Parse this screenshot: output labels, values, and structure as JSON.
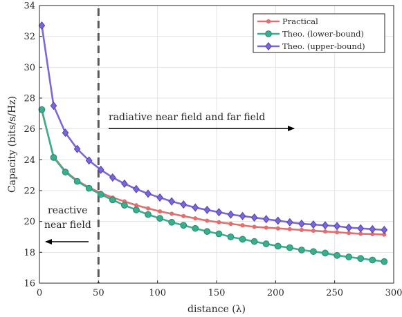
{
  "chart_data": {
    "type": "line",
    "xlabel": "distance (λ)",
    "ylabel": "Capacity (bits/s/Hz)",
    "xlim": [
      0,
      300
    ],
    "ylim": [
      16,
      34
    ],
    "xticks": [
      0,
      50,
      100,
      150,
      200,
      250,
      300
    ],
    "yticks": [
      16,
      18,
      20,
      22,
      24,
      26,
      28,
      30,
      32,
      34
    ],
    "grid": true,
    "legend_position": "top-right",
    "x": [
      2,
      12,
      22,
      32,
      42,
      52,
      62,
      72,
      82,
      92,
      102,
      112,
      122,
      132,
      142,
      152,
      162,
      172,
      182,
      192,
      202,
      212,
      222,
      232,
      242,
      252,
      262,
      272,
      282,
      292
    ],
    "series": [
      {
        "name": "Practical",
        "color": "#E07070",
        "marker": "dot",
        "values": [
          27.2,
          24.2,
          23.25,
          22.65,
          22.2,
          21.85,
          21.55,
          21.3,
          21.05,
          20.85,
          20.65,
          20.5,
          20.35,
          20.2,
          20.05,
          19.95,
          19.85,
          19.75,
          19.65,
          19.6,
          19.55,
          19.5,
          19.45,
          19.4,
          19.35,
          19.3,
          19.25,
          19.2,
          19.18,
          19.15
        ]
      },
      {
        "name": "Theo. (lower-bound)",
        "color": "#3AAE8E",
        "marker": "circle",
        "values": [
          27.25,
          24.15,
          23.2,
          22.6,
          22.15,
          21.75,
          21.4,
          21.05,
          20.75,
          20.45,
          20.2,
          19.95,
          19.75,
          19.55,
          19.35,
          19.2,
          19.0,
          18.85,
          18.7,
          18.55,
          18.4,
          18.3,
          18.15,
          18.05,
          17.95,
          17.8,
          17.7,
          17.6,
          17.5,
          17.4
        ]
      },
      {
        "name": "Theo. (upper-bound)",
        "color": "#7B68D6",
        "marker": "diamond",
        "values": [
          32.7,
          27.5,
          25.75,
          24.7,
          23.95,
          23.35,
          22.85,
          22.45,
          22.1,
          21.8,
          21.55,
          21.3,
          21.1,
          20.9,
          20.75,
          20.6,
          20.45,
          20.35,
          20.25,
          20.15,
          20.05,
          19.95,
          19.85,
          19.8,
          19.75,
          19.7,
          19.6,
          19.55,
          19.5,
          19.45
        ]
      }
    ],
    "annotations": [
      {
        "text": "radiative near field and far field",
        "arrow": "right"
      },
      {
        "text_lines": [
          "reactive",
          "near field"
        ],
        "arrow": "left"
      }
    ],
    "vertical_line": {
      "x": 50,
      "style": "dashed",
      "color": "#595959"
    }
  }
}
